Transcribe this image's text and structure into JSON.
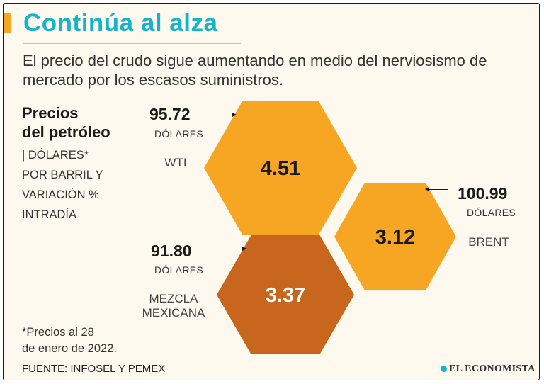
{
  "header": {
    "title": "Continúa al alza",
    "subtitle": "El precio del crudo sigue aumentando en medio del nerviosismo de mercado por los escasos suministros."
  },
  "legend": {
    "title": "Precios\ndel petróleo",
    "description": "| DÓLARES*\nPOR BARRIL Y\nVARIACIÓN %\nINTRADÍA"
  },
  "footnote": "*Precios al 28\nde enero de 2022.",
  "source": "FUENTE: INFOSEL Y PEMEX",
  "brand": "EL ECONOMISTA",
  "chart_data": {
    "type": "hexagon",
    "unit_label": "DÓLARES",
    "series": [
      {
        "name": "WTI",
        "price": "95.72",
        "variation": "4.51",
        "color": "#f6a623",
        "text_color": "#1a1a1a"
      },
      {
        "name": "BRENT",
        "price": "100.99",
        "variation": "3.12",
        "color": "#f6a623",
        "text_color": "#1a1a1a"
      },
      {
        "name": "MEZCLA\nMEXICANA",
        "price": "91.80",
        "variation": "3.37",
        "color": "#c8661e",
        "text_color": "#ffffff"
      }
    ]
  }
}
